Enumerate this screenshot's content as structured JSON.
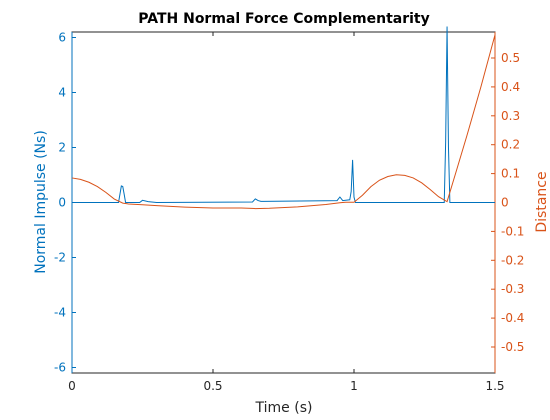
{
  "chart_data": {
    "type": "line",
    "title": "PATH Normal Force Complementarity",
    "xlabel": "Time (s)",
    "ylabel_left": "Normal Impulse (Ns)",
    "ylabel_right": "Distance",
    "xlim": [
      0,
      1.5
    ],
    "ylim_left": [
      -6.2,
      6.2
    ],
    "ylim_right": [
      -0.59,
      0.59
    ],
    "x_ticks": [
      0,
      0.5,
      1,
      1.5
    ],
    "x_tick_labels": [
      "0",
      "0.5",
      "1",
      "1.5"
    ],
    "y_left_ticks": [
      -6,
      -4,
      -2,
      0,
      2,
      4,
      6
    ],
    "y_left_tick_labels": [
      "-6",
      "-4",
      "-2",
      "0",
      "2",
      "4",
      "6"
    ],
    "y_right_ticks": [
      -0.5,
      -0.4,
      -0.3,
      -0.2,
      -0.1,
      0,
      0.1,
      0.2,
      0.3,
      0.4,
      0.5
    ],
    "y_right_tick_labels": [
      "-0.5",
      "-0.4",
      "-0.3",
      "-0.2",
      "-0.1",
      "0",
      "0.1",
      "0.2",
      "0.3",
      "0.4",
      "0.5"
    ],
    "grid": false,
    "legend": "none",
    "colors": {
      "left_series": "#0072BD",
      "right_series": "#D95319",
      "axes": "#262626"
    },
    "series": [
      {
        "axis": "left",
        "x": [
          0,
          0.165,
          0.17,
          0.175,
          0.18,
          0.185,
          0.19,
          0.2,
          0.24,
          0.25,
          0.27,
          0.3,
          0.64,
          0.65,
          0.66,
          0.67,
          0.68,
          0.94,
          0.95,
          0.96,
          0.985,
          0.99,
          0.995,
          1.0,
          1.005,
          1.01,
          1.015,
          1.32,
          1.325,
          1.33,
          1.335,
          1.34,
          1.345,
          1.35,
          1.5
        ],
        "y": [
          0,
          0,
          0.3,
          0.6,
          0.58,
          0.3,
          0,
          0,
          0,
          0.08,
          0.03,
          0,
          0.02,
          0.13,
          0.07,
          0.04,
          0.04,
          0.07,
          0.2,
          0.07,
          0.1,
          0.4,
          1.55,
          0.2,
          0,
          0,
          0,
          0,
          2.2,
          6.4,
          2.0,
          0,
          0,
          0,
          0
        ]
      },
      {
        "axis": "right",
        "x": [
          0,
          0.03,
          0.06,
          0.09,
          0.12,
          0.15,
          0.18,
          0.2,
          0.25,
          0.3,
          0.4,
          0.5,
          0.55,
          0.6,
          0.65,
          0.7,
          0.8,
          0.9,
          0.95,
          0.97,
          1.0,
          1.03,
          1.06,
          1.09,
          1.12,
          1.15,
          1.18,
          1.21,
          1.24,
          1.27,
          1.3,
          1.33,
          1.36,
          1.4,
          1.45,
          1.5
        ],
        "y": [
          0.085,
          0.08,
          0.07,
          0.055,
          0.035,
          0.012,
          -0.002,
          -0.005,
          -0.008,
          -0.011,
          -0.016,
          -0.019,
          -0.019,
          -0.019,
          -0.021,
          -0.02,
          -0.015,
          -0.007,
          -0.001,
          0.001,
          0.001,
          0.025,
          0.055,
          0.077,
          0.09,
          0.096,
          0.094,
          0.085,
          0.068,
          0.045,
          0.02,
          0.003,
          0.1,
          0.23,
          0.4,
          0.58
        ]
      }
    ]
  }
}
